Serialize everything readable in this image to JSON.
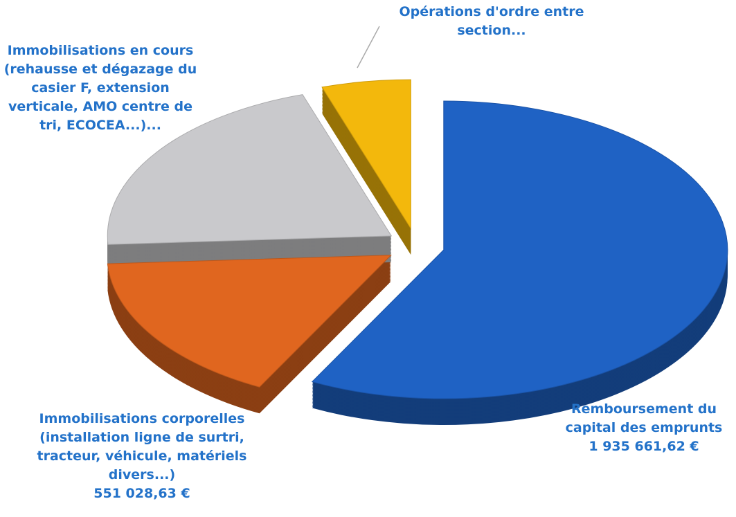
{
  "chart_data": {
    "type": "pie",
    "categories": [
      "Remboursement du\ncapital des emprunts",
      "Immobilisations corporelles\n(installation ligne de surtri,\ntracteur, véhicule, matériels\ndivers...)",
      "Immobilisations en cours\n(rehausse et dégazage du\ncasier F, extension\nverticale,  AMO centre de\ntri, ECOCEA...)...",
      "Opérations d'ordre entre\nsection..."
    ],
    "values": [
      1935661.62,
      551028.63,
      700000,
      170000
    ],
    "value_labels": [
      "1 935 661,62 €",
      "551 028,63 €",
      null,
      null
    ],
    "colors": [
      "#1f62c4",
      "#e0661f",
      "#c9c9cc",
      "#f3b80c"
    ]
  }
}
